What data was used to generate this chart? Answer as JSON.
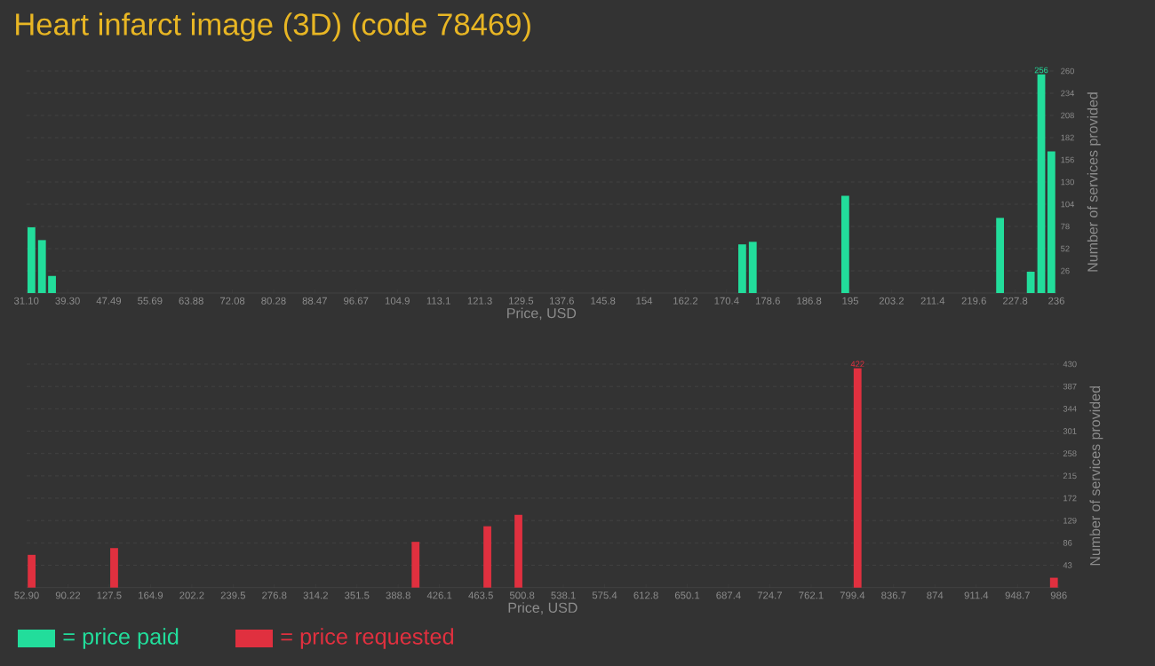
{
  "chart_data": [
    {
      "type": "bar",
      "title": "Heart infarct image (3D) (code 78469)",
      "xlabel": "Price, USD",
      "ylabel": "Number of services provided",
      "x": [
        32.1,
        34.2,
        36.2,
        173.5,
        175.6,
        194.0,
        224.8,
        230.9,
        233.0,
        235.0
      ],
      "series": [
        {
          "name": "= price paid",
          "color": "#22dd9b",
          "values": [
            77,
            62,
            20,
            57,
            60,
            114,
            88,
            25,
            256,
            166
          ],
          "value_labels": [
            null,
            null,
            null,
            null,
            null,
            null,
            null,
            null,
            "256",
            null
          ]
        }
      ],
      "xlim": [
        31.1,
        236
      ],
      "ylim": [
        0,
        260
      ],
      "xticks": [
        {
          "value": 31.1,
          "label": "31.10"
        },
        {
          "value": 39.3,
          "label": "39.30"
        },
        47.49,
        55.69,
        63.88,
        72.08,
        80.28,
        88.47,
        96.67,
        104.9,
        113.1,
        121.3,
        129.5,
        137.6,
        145.8,
        154,
        162.2,
        170.4,
        178.6,
        186.8,
        195,
        203.2,
        211.4,
        219.6,
        227.8,
        236
      ],
      "yticks": [
        26,
        52,
        78,
        104,
        130,
        156,
        182,
        208,
        234,
        260
      ],
      "grid": "y",
      "legend": "bottom"
    },
    {
      "type": "bar",
      "xlabel": "Price, USD",
      "ylabel": "Number of services provided",
      "x": [
        57.4,
        132.0,
        404.5,
        469.4,
        497.5,
        804.1,
        981.6
      ],
      "series": [
        {
          "name": "= price requested",
          "color": "#e0303f",
          "values": [
            63,
            76,
            88,
            118,
            140,
            422,
            19
          ],
          "value_labels": [
            null,
            null,
            null,
            null,
            null,
            "422",
            null
          ]
        }
      ],
      "xlim": [
        52.9,
        986
      ],
      "ylim": [
        0,
        430
      ],
      "xticks": [
        {
          "value": 52.9,
          "label": "52.90"
        },
        90.22,
        127.5,
        164.9,
        202.2,
        239.5,
        276.8,
        314.2,
        351.5,
        388.8,
        426.1,
        463.5,
        500.8,
        538.1,
        575.4,
        612.8,
        650.1,
        687.4,
        724.7,
        762.1,
        799.4,
        836.7,
        874,
        911.4,
        948.7,
        986
      ],
      "yticks": [
        43,
        86,
        129,
        172,
        215,
        258,
        301,
        344,
        387,
        430
      ],
      "grid": "y",
      "legend": "bottom"
    }
  ]
}
